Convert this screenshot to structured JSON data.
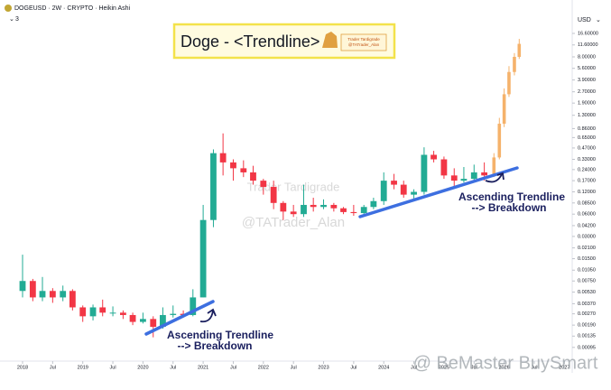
{
  "header": {
    "symbol": "DOGEUSD · 2W · CRYPTO · Heikin Ashi",
    "indicator_count": 3,
    "currency": "USD"
  },
  "chart_data": {
    "type": "candlestick",
    "title": "Doge - <Trendline>",
    "logo_text": [
      "Trader Tardigrade",
      "@TATrader_Alan"
    ],
    "watermarks": [
      "Trader Tardigrade",
      "@TATrader_Alan",
      "@ BeMaster BuySmart"
    ],
    "annotations": [
      "Ascending Trendline",
      "--> Breakdown",
      "Ascending Trendline",
      "--> Breakdown"
    ],
    "xlim": [
      2017.85,
      2027.07
    ],
    "xticks": [
      2018,
      {
        "value": 2018.5,
        "label": "Jul"
      },
      2019,
      {
        "value": 2019.5,
        "label": "Jul"
      },
      2020,
      {
        "value": 2020.5,
        "label": "Jul"
      },
      2021,
      {
        "value": 2021.5,
        "label": "Jul"
      },
      2022,
      {
        "value": 2022.5,
        "label": "Jul"
      },
      2023,
      {
        "value": 2023.5,
        "label": "Jul"
      },
      2024,
      {
        "value": 2024.5,
        "label": "Jul"
      },
      2025,
      {
        "value": 2025.5,
        "label": "Jul"
      },
      2026,
      {
        "value": 2026.5,
        "label": "Jul"
      },
      2027
    ],
    "ylim": [
      0.00062,
      30.8
    ],
    "log_scale": true,
    "yticks": [
      {
        "value": 16.6,
        "label": "16.60000"
      },
      {
        "value": 11.6,
        "label": "11.60000"
      },
      {
        "value": 8,
        "label": "8.00000"
      },
      {
        "value": 5.6,
        "label": "5.60000"
      },
      {
        "value": 3.9,
        "label": "3.90000"
      },
      {
        "value": 2.7,
        "label": "2.70000"
      },
      {
        "value": 1.9,
        "label": "1.90000"
      },
      {
        "value": 1.3,
        "label": "1.30000"
      },
      {
        "value": 0.86,
        "label": "0.86000"
      },
      {
        "value": 0.65,
        "label": "0.65000"
      },
      {
        "value": 0.47,
        "label": "0.47000"
      },
      {
        "value": 0.33,
        "label": "0.33000"
      },
      {
        "value": 0.24,
        "label": "0.24000"
      },
      {
        "value": 0.17,
        "label": "0.17000"
      },
      {
        "value": 0.12,
        "label": "0.12000"
      },
      {
        "value": 0.085,
        "label": "0.08500"
      },
      {
        "value": 0.06,
        "label": "0.06000"
      },
      {
        "value": 0.042,
        "label": "0.04200"
      },
      {
        "value": 0.03,
        "label": "0.03000"
      },
      {
        "value": 0.021,
        "label": "0.02100"
      },
      {
        "value": 0.015,
        "label": "0.01500"
      },
      {
        "value": 0.0105,
        "label": "0.01050"
      },
      {
        "value": 0.0075,
        "label": "0.00750"
      },
      {
        "value": 0.0053,
        "label": "0.00530"
      },
      {
        "value": 0.0037,
        "label": "0.00370"
      },
      {
        "value": 0.0027,
        "label": "0.00270"
      },
      {
        "value": 0.0019,
        "label": "0.00190"
      },
      {
        "value": 0.00135,
        "label": "0.00135"
      },
      {
        "value": 0.00095,
        "label": "0.00095"
      }
    ],
    "series": [
      {
        "color_up": "#22ab94",
        "color_down": "#f23645",
        "x": [
          2018.0,
          2018.17,
          2018.33,
          2018.5,
          2018.67,
          2018.83,
          2019.0,
          2019.17,
          2019.33,
          2019.5,
          2019.67,
          2019.83,
          2020.0,
          2020.17,
          2020.33,
          2020.5,
          2020.67,
          2020.83,
          2021.0,
          2021.17,
          2021.33,
          2021.5,
          2021.67,
          2021.83,
          2022.0,
          2022.17,
          2022.33,
          2022.5,
          2022.67,
          2022.83,
          2023.0,
          2023.17,
          2023.33,
          2023.5,
          2023.67,
          2023.83,
          2024.0,
          2024.17,
          2024.33,
          2024.5,
          2024.67,
          2024.83,
          2025.0,
          2025.17,
          2025.33,
          2025.5,
          2025.67
        ],
        "open": [
          0.0055,
          0.0075,
          0.0045,
          0.0055,
          0.0045,
          0.0055,
          0.0033,
          0.0025,
          0.0033,
          0.0028,
          0.0028,
          0.0026,
          0.0021,
          0.0023,
          0.0018,
          0.0026,
          0.0027,
          0.0026,
          0.0045,
          0.05,
          0.4,
          0.3,
          0.25,
          0.22,
          0.17,
          0.14,
          0.085,
          0.065,
          0.06,
          0.08,
          0.075,
          0.08,
          0.072,
          0.064,
          0.062,
          0.075,
          0.09,
          0.17,
          0.15,
          0.11,
          0.12,
          0.38,
          0.33,
          0.2,
          0.17,
          0.18,
          0.22
        ],
        "high": [
          0.017,
          0.008,
          0.0085,
          0.006,
          0.0065,
          0.0058,
          0.0035,
          0.0036,
          0.0042,
          0.0034,
          0.003,
          0.0028,
          0.0028,
          0.0025,
          0.0033,
          0.0035,
          0.003,
          0.0058,
          0.08,
          0.45,
          0.74,
          0.33,
          0.32,
          0.27,
          0.18,
          0.17,
          0.09,
          0.08,
          0.15,
          0.1,
          0.095,
          0.085,
          0.075,
          0.08,
          0.08,
          0.1,
          0.22,
          0.21,
          0.17,
          0.13,
          0.48,
          0.43,
          0.36,
          0.25,
          0.26,
          0.28,
          0.3
        ],
        "low": [
          0.0045,
          0.004,
          0.004,
          0.0038,
          0.004,
          0.003,
          0.0021,
          0.0022,
          0.0025,
          0.0025,
          0.0023,
          0.0019,
          0.002,
          0.0013,
          0.0017,
          0.0024,
          0.0024,
          0.0025,
          0.0045,
          0.04,
          0.2,
          0.17,
          0.19,
          0.15,
          0.11,
          0.07,
          0.05,
          0.055,
          0.055,
          0.065,
          0.07,
          0.065,
          0.06,
          0.057,
          0.058,
          0.07,
          0.08,
          0.13,
          0.1,
          0.09,
          0.11,
          0.3,
          0.18,
          0.14,
          0.16,
          0.17,
          0.17
        ],
        "close": [
          0.0075,
          0.0045,
          0.0055,
          0.0045,
          0.0055,
          0.0033,
          0.0025,
          0.0033,
          0.0028,
          0.0028,
          0.0026,
          0.0021,
          0.0023,
          0.0018,
          0.0026,
          0.0027,
          0.0026,
          0.0045,
          0.05,
          0.4,
          0.3,
          0.25,
          0.22,
          0.17,
          0.14,
          0.085,
          0.065,
          0.06,
          0.08,
          0.075,
          0.08,
          0.072,
          0.064,
          0.062,
          0.075,
          0.09,
          0.17,
          0.15,
          0.11,
          0.12,
          0.38,
          0.33,
          0.2,
          0.17,
          0.18,
          0.22,
          0.2
        ]
      },
      {
        "color": "#f5b26b",
        "x": [
          2025.83,
          2025.92,
          2026.0,
          2026.08,
          2026.17,
          2026.25
        ],
        "open": [
          0.2,
          0.35,
          1.0,
          2.5,
          5,
          8
        ],
        "high": [
          0.4,
          1.2,
          3,
          6,
          9,
          14
        ],
        "low": [
          0.19,
          0.33,
          0.9,
          2.3,
          4.5,
          7.5
        ],
        "close": [
          0.35,
          1.0,
          2.5,
          5,
          8,
          12
        ]
      }
    ]
  }
}
